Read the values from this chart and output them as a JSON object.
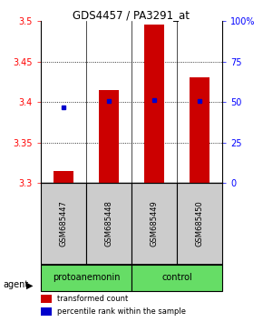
{
  "title": "GDS4457 / PA3291_at",
  "samples": [
    "GSM685447",
    "GSM685448",
    "GSM685449",
    "GSM685450"
  ],
  "bar_values": [
    3.315,
    3.415,
    3.495,
    3.43
  ],
  "bar_base": 3.3,
  "percentile_values": [
    3.394,
    3.401,
    3.402,
    3.401
  ],
  "ylim": [
    3.3,
    3.5
  ],
  "yticks_left": [
    3.3,
    3.35,
    3.4,
    3.45,
    3.5
  ],
  "yticks_right": [
    0,
    25,
    50,
    75,
    100
  ],
  "bar_color": "#cc0000",
  "dot_color": "#0000cc",
  "group_labels": [
    "protoanemonin",
    "control"
  ],
  "group_colors": [
    "#66dd66",
    "#66dd66"
  ],
  "group_bg_color": "#cccccc",
  "legend_red_label": "transformed count",
  "legend_blue_label": "percentile rank within the sample",
  "agent_label": "agent",
  "sample_box_color": "#cccccc"
}
